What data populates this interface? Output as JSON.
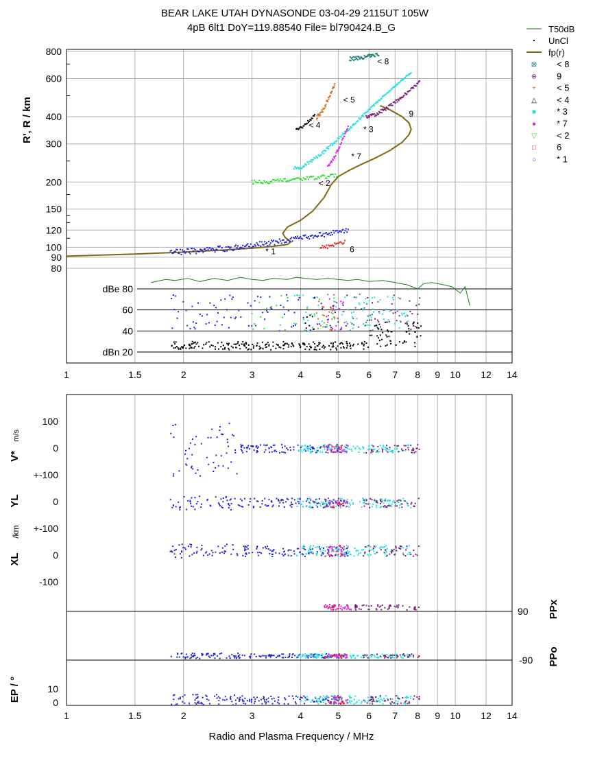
{
  "header": {
    "line1": "BEAR LAKE UTAH    DYNASONDE 03-04-29 2115UT 105W",
    "line2": "4pB 6lt1  DoY=119.88540  File=  bl790424.B_G"
  },
  "colors": {
    "grid": "#b0b0b0",
    "T50dB": "#1a7a1a",
    "UnCl": "#000000",
    "fp": "#7d6a10",
    "s8": "#1e7f7f",
    "s9": "#7a1f7a",
    "s5": "#d07020",
    "s4": "#000000",
    "s3": "#20e0e0",
    "s7": "#e020e0",
    "s2": "#20e020",
    "s6": "#e02020",
    "s1": "#2020d0"
  },
  "chart_data": [
    {
      "type": "scatter",
      "xscale": "log",
      "xlim": [
        1,
        14
      ],
      "xticks": [
        "1",
        "1.5",
        "2",
        "3",
        "4",
        "5",
        "6",
        "7",
        "8",
        "9",
        "10",
        "12",
        "14"
      ],
      "y_range_ticks": [
        "800",
        "600",
        "400",
        "300",
        "200",
        "150",
        "120",
        "100",
        "90",
        "80"
      ],
      "ylim_range_km": [
        80,
        800
      ],
      "ylabel": "R', R / km",
      "amplitude_ticks": [
        "dBe 80",
        "60",
        "40",
        "dBn 20"
      ],
      "legend": [
        {
          "key": "T50dB",
          "marker": "line",
          "label": "T50dB"
        },
        {
          "key": "UnCl",
          "marker": "dot",
          "label": "UnCl"
        },
        {
          "key": "fp",
          "marker": "line",
          "label": "fp(r)"
        },
        {
          "key": "s8",
          "marker": "⊠",
          "label": "< 8"
        },
        {
          "key": "s9",
          "marker": "⊕",
          "label": "9"
        },
        {
          "key": "s5",
          "marker": "+",
          "label": "< 5"
        },
        {
          "key": "s4",
          "marker": "△",
          "label": "< 4"
        },
        {
          "key": "s3",
          "marker": "■",
          "label": "* 3"
        },
        {
          "key": "s7",
          "marker": "●",
          "label": "* 7"
        },
        {
          "key": "s2",
          "marker": "▽",
          "label": "< 2"
        },
        {
          "key": "s6",
          "marker": "□",
          "label": "6"
        },
        {
          "key": "s1",
          "marker": "○",
          "label": "* 1"
        }
      ],
      "series_labels": [
        {
          "text": "< 8",
          "f": 6.3,
          "r": 700
        },
        {
          "text": "< 5",
          "f": 5.15,
          "r": 465
        },
        {
          "text": "9",
          "f": 7.6,
          "r": 400
        },
        {
          "text": "< 4",
          "f": 4.2,
          "r": 355
        },
        {
          "text": "* 3",
          "f": 5.8,
          "r": 340
        },
        {
          "text": "* 7",
          "f": 5.4,
          "r": 255
        },
        {
          "text": "< 2",
          "f": 4.45,
          "r": 192
        },
        {
          "text": "* 1",
          "f": 3.25,
          "r": 93
        },
        {
          "text": "6",
          "f": 5.35,
          "r": 95
        }
      ],
      "series": [
        {
          "name": "T50dB",
          "color": "T50dB",
          "kind": "line",
          "f": [
            1.65,
            1.8,
            1.9,
            2.05,
            2.2,
            2.4,
            2.6,
            2.8,
            3.0,
            3.2,
            3.4,
            3.7,
            3.9,
            4.1,
            4.4,
            4.7,
            5.0,
            5.3,
            5.6,
            6.0,
            6.5,
            7.0,
            7.5,
            8.0,
            8.3,
            8.7,
            9.3,
            9.8,
            10.3,
            10.6,
            10.9
          ],
          "db": [
            86,
            89,
            88,
            90,
            87,
            90,
            88,
            91,
            89,
            88,
            90,
            89,
            91,
            90,
            89,
            90,
            89,
            88,
            89,
            87,
            88,
            86,
            84,
            80,
            85,
            86,
            84,
            82,
            76,
            82,
            64
          ]
        },
        {
          "name": "fp(r)",
          "color": "fp",
          "kind": "line",
          "f": [
            1.0,
            1.5,
            2.0,
            2.5,
            3.0,
            3.4,
            3.7,
            3.78,
            3.65,
            3.6,
            3.7,
            4.0,
            4.3,
            4.6,
            4.8,
            5.0,
            5.3,
            5.7,
            6.2,
            6.8,
            7.3,
            7.6,
            7.7,
            7.6,
            7.3,
            6.8,
            6.4
          ],
          "r": [
            91,
            93,
            95,
            97,
            99,
            101,
            103,
            106,
            111,
            116,
            124,
            133,
            147,
            170,
            195,
            212,
            225,
            240,
            257,
            280,
            305,
            330,
            350,
            375,
            400,
            430,
            450
          ]
        }
      ],
      "point_groups": [
        {
          "name": "< 8",
          "color": "s8",
          "f": [
            5.35,
            6.35
          ],
          "r": [
            740,
            780
          ],
          "n": 50,
          "jitter": 15
        },
        {
          "name": "9",
          "color": "s9",
          "f": [
            5.9,
            8.1
          ],
          "r": [
            400,
            580
          ],
          "n": 80,
          "jitter": 8
        },
        {
          "name": "< 5",
          "color": "s5",
          "f": [
            4.4,
            4.9
          ],
          "r": [
            400,
            570
          ],
          "n": 40,
          "jitter": 10
        },
        {
          "name": "< 4",
          "color": "s4",
          "f": [
            3.9,
            4.35
          ],
          "r": [
            350,
            410
          ],
          "n": 25,
          "jitter": 6
        },
        {
          "name": "* 3",
          "color": "s3",
          "f": [
            3.85,
            7.7
          ],
          "r": [
            230,
            640
          ],
          "n": 160,
          "jitter": 5
        },
        {
          "name": "* 7",
          "color": "s7",
          "f": [
            4.7,
            5.3
          ],
          "r": [
            240,
            360
          ],
          "n": 35,
          "jitter": 5
        },
        {
          "name": "< 2",
          "color": "s2",
          "f": [
            3.0,
            4.95
          ],
          "r": [
            200,
            215
          ],
          "n": 70,
          "jitter": 4
        },
        {
          "name": "6",
          "color": "s6",
          "f": [
            4.5,
            5.2
          ],
          "r": [
            100,
            106
          ],
          "n": 25,
          "jitter": 2
        },
        {
          "name": "* 1",
          "color": "s1",
          "f": [
            1.85,
            5.3
          ],
          "r": [
            95,
            120
          ],
          "n": 180,
          "jitter": 3
        }
      ]
    },
    {
      "type": "scatter",
      "xscale": "log",
      "xlim": [
        1,
        14
      ],
      "xticks": [
        "1",
        "1.5",
        "2",
        "3",
        "4",
        "5",
        "6",
        "7",
        "8",
        "9",
        "10",
        "12",
        "14"
      ],
      "xlabel": "Radio and Plasma Frequency / MHz",
      "panels": [
        {
          "label": "V* m/s",
          "ticks": [
            "100",
            "0",
            "+-100"
          ],
          "units": "m/s"
        },
        {
          "label": "YL",
          "ticks": [
            "0",
            "+-100"
          ],
          "units": "/km"
        },
        {
          "label": "XL",
          "ticks": [
            "0",
            "-100"
          ],
          "units": ""
        },
        {
          "label": "PPx",
          "ticks": [
            "90"
          ],
          "units": ""
        },
        {
          "label": "PPo",
          "ticks": [
            "-90"
          ],
          "units": ""
        },
        {
          "label": "EP / °",
          "ticks": [
            "10",
            "0"
          ],
          "units": "°"
        }
      ],
      "labels": {
        "V": "V*",
        "Vunit": "m/s",
        "YL": "YL",
        "km": "/km",
        "XL": "XL",
        "PPx": "PPx",
        "PPo": "PPo",
        "EP": "EP / °",
        "t100": "100",
        "t0": "0",
        "tpm100": "+-100",
        "tm100": "-100",
        "t90": "90",
        "tm90": "-90",
        "t10": "10"
      }
    }
  ]
}
